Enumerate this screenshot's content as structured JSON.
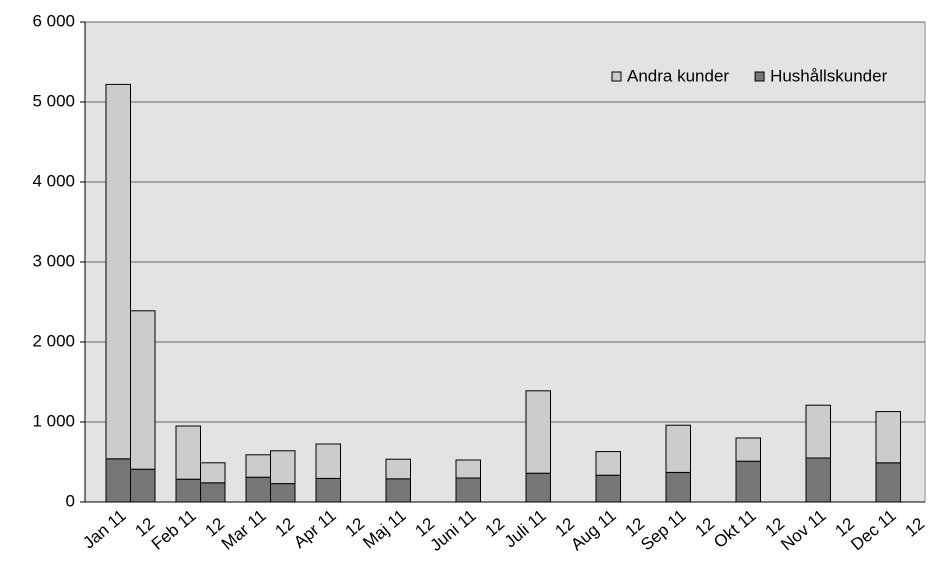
{
  "chart_data": {
    "type": "stacked_bar",
    "categories": [
      "Jan 11",
      "12",
      "Feb 11",
      "12",
      "Mar 11",
      "12",
      "Apr 11",
      "12",
      "Maj 11",
      "12",
      "Juni 11",
      "12",
      "Juli 11",
      "12",
      "Aug 11",
      "12",
      "Sep 11",
      "12",
      "Okt 11",
      "12",
      "Nov 11",
      "12",
      "Dec 11",
      "12"
    ],
    "series": [
      {
        "name": "Hushållskunder",
        "color": "#777777",
        "values": [
          540,
          410,
          285,
          240,
          310,
          230,
          295,
          null,
          290,
          null,
          300,
          null,
          360,
          null,
          335,
          null,
          370,
          null,
          510,
          null,
          550,
          null,
          490,
          null
        ]
      },
      {
        "name": "Andra kunder",
        "color": "#cccccc",
        "values": [
          4680,
          1980,
          665,
          250,
          280,
          410,
          430,
          null,
          245,
          null,
          225,
          null,
          1030,
          null,
          295,
          null,
          590,
          null,
          290,
          null,
          660,
          null,
          640,
          null
        ]
      }
    ],
    "ylim": [
      0,
      6000
    ],
    "yticks": [
      0,
      {
        "value": 1000,
        "label": "1 000"
      },
      {
        "value": 2000,
        "label": "2 000"
      },
      {
        "value": 3000,
        "label": "3 000"
      },
      {
        "value": 4000,
        "label": "4 000"
      },
      {
        "value": 5000,
        "label": "5 000"
      },
      {
        "value": 6000,
        "label": "6 000"
      }
    ],
    "grid": true,
    "legend": "top-right"
  }
}
